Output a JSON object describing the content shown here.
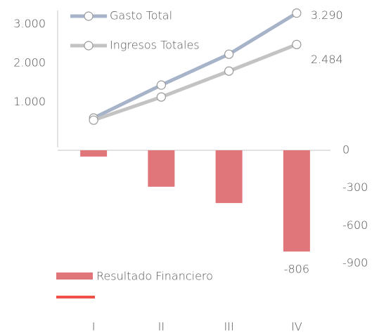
{
  "chart_data": [
    {
      "type": "line",
      "series": [
        {
          "name": "Gasto Total",
          "color": "#a7b3c8",
          "values": [
            595,
            1441,
            2234,
            3290
          ],
          "value_labels": [
            null,
            null,
            null,
            "3.290"
          ]
        },
        {
          "name": "Ingresos Totales",
          "color": "#c3c3c3",
          "values": [
            540,
            1135,
            1800,
            2484
          ],
          "value_labels": [
            null,
            null,
            null,
            "2.484"
          ]
        }
      ],
      "ylim": [
        0,
        3500
      ],
      "yticks": [
        {
          "value": 1000,
          "label": "1.000"
        },
        {
          "value": 2000,
          "label": "2.000"
        },
        {
          "value": 3000,
          "label": "3.000"
        }
      ]
    },
    {
      "type": "bar",
      "categories": [
        "I",
        "II",
        "III",
        "IV"
      ],
      "series": [
        {
          "name": "Resultado Financiero",
          "color": "#e0757a",
          "values": [
            -50,
            -290,
            -420,
            -806
          ],
          "value_labels": [
            null,
            null,
            null,
            "-806"
          ]
        }
      ],
      "ylim": [
        -900,
        0
      ],
      "yticks": [
        0,
        -300,
        -600,
        -900
      ]
    }
  ]
}
